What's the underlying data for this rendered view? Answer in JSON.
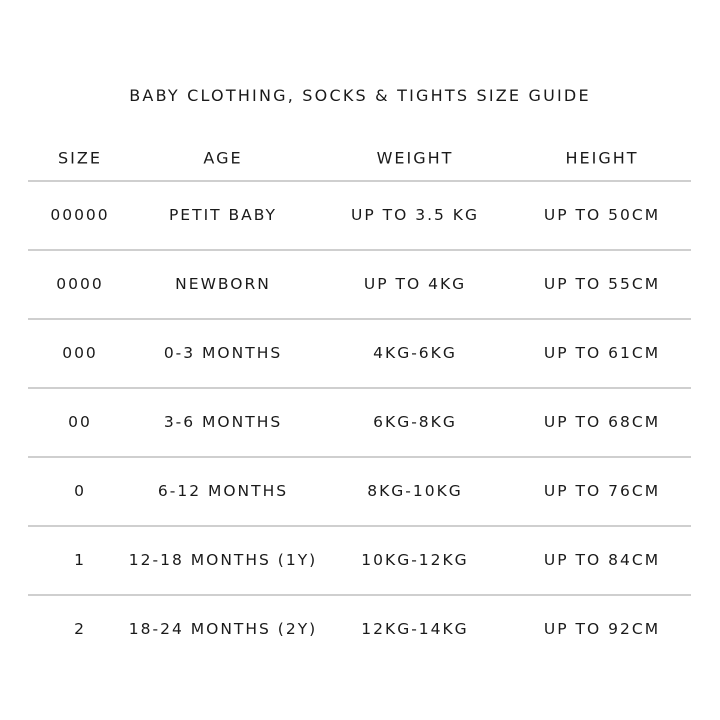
{
  "title": "BABY CLOTHING, SOCKS & TIGHTS SIZE GUIDE",
  "headers": [
    "SIZE",
    "AGE",
    "WEIGHT",
    "HEIGHT"
  ],
  "rows": [
    [
      "00000",
      "PETIT BABY",
      "UP TO 3.5 KG",
      "UP TO 50CM"
    ],
    [
      "0000",
      "NEWBORN",
      "UP TO 4KG",
      "UP TO 55CM"
    ],
    [
      "000",
      "0-3 MONTHS",
      "4KG-6KG",
      "UP TO 61CM"
    ],
    [
      "00",
      "3-6 MONTHS",
      "6KG-8KG",
      "UP TO 68CM"
    ],
    [
      "0",
      "6-12 MONTHS",
      "8KG-10KG",
      "UP TO 76CM"
    ],
    [
      "1",
      "12-18 MONTHS (1Y)",
      "10KG-12KG",
      "UP TO 84CM"
    ],
    [
      "2",
      "18-24 MONTHS (2Y)",
      "12KG-14KG",
      "UP TO 92CM"
    ]
  ]
}
